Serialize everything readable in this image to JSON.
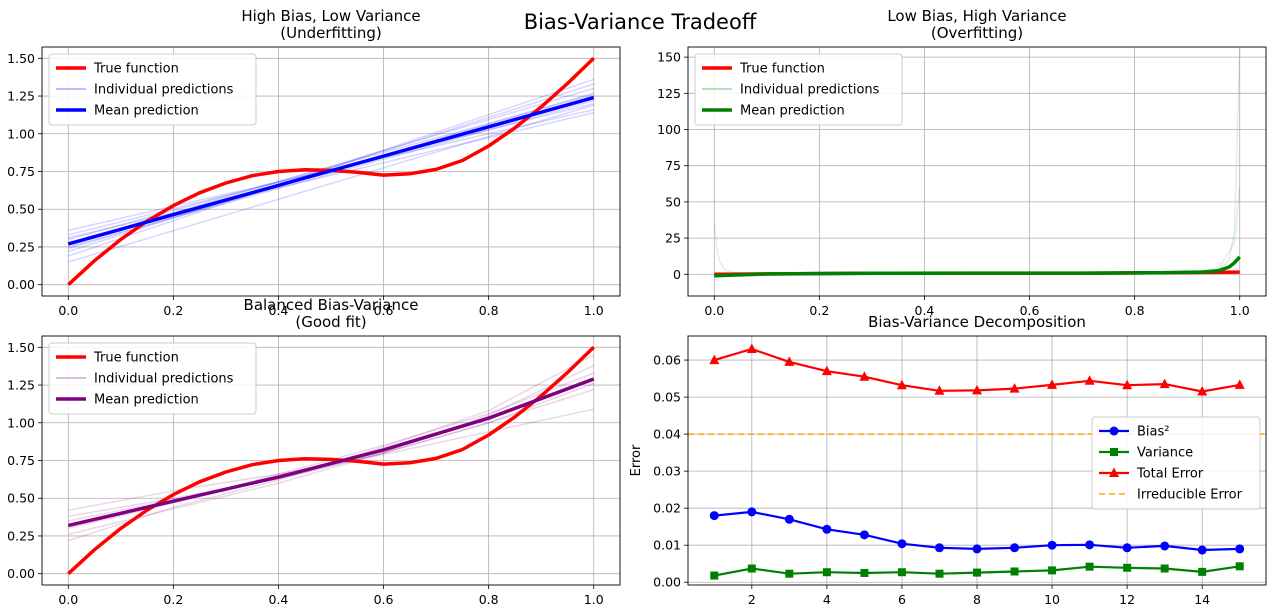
{
  "figure": {
    "suptitle": "Bias-Variance Tradeoff"
  },
  "chart_data": [
    {
      "type": "line",
      "title_line1": "High Bias, Low Variance",
      "title_line2": "(Underfitting)",
      "xlim": [
        -0.05,
        1.05
      ],
      "ylim": [
        -0.075,
        1.575
      ],
      "xticks": [
        "0.0",
        "0.2",
        "0.4",
        "0.6",
        "0.8",
        "1.0"
      ],
      "yticks": [
        "0.00",
        "0.25",
        "0.50",
        "0.75",
        "1.00",
        "1.25",
        "1.50"
      ],
      "grid": true,
      "legend_position": "upper-left",
      "legend": [
        "True function",
        "Individual predictions",
        "Mean prediction"
      ],
      "true_function": {
        "x": [
          0.0,
          0.05,
          0.1,
          0.15,
          0.2,
          0.25,
          0.3,
          0.35,
          0.4,
          0.45,
          0.5,
          0.55,
          0.6,
          0.65,
          0.7,
          0.75,
          0.8,
          0.85,
          0.9,
          0.95,
          1.0
        ],
        "y": [
          0.0,
          0.159,
          0.3,
          0.421,
          0.524,
          0.609,
          0.674,
          0.722,
          0.75,
          0.762,
          0.757,
          0.745,
          0.726,
          0.735,
          0.764,
          0.823,
          0.919,
          1.039,
          1.178,
          1.333,
          1.5
        ]
      },
      "mean_prediction": {
        "x": [
          0.0,
          1.0
        ],
        "y": [
          0.27,
          1.24
        ]
      },
      "individual_predictions": [
        {
          "x": [
            0.0,
            1.0
          ],
          "y": [
            0.36,
            1.16
          ]
        },
        {
          "x": [
            0.0,
            1.0
          ],
          "y": [
            0.33,
            1.2
          ]
        },
        {
          "x": [
            0.0,
            1.0
          ],
          "y": [
            0.3,
            1.26
          ]
        },
        {
          "x": [
            0.0,
            1.0
          ],
          "y": [
            0.27,
            1.3
          ]
        },
        {
          "x": [
            0.0,
            1.0
          ],
          "y": [
            0.24,
            1.27
          ]
        },
        {
          "x": [
            0.0,
            1.0
          ],
          "y": [
            0.22,
            1.33
          ]
        },
        {
          "x": [
            0.0,
            1.0
          ],
          "y": [
            0.19,
            1.36
          ]
        },
        {
          "x": [
            0.0,
            1.0
          ],
          "y": [
            0.15,
            1.19
          ]
        },
        {
          "x": [
            0.0,
            1.0
          ],
          "y": [
            0.31,
            1.14
          ]
        },
        {
          "x": [
            0.0,
            1.0
          ],
          "y": [
            0.25,
            1.22
          ]
        }
      ],
      "colors": {
        "true": "#ff0000",
        "individual": "#0000ff",
        "mean": "#0000ff"
      }
    },
    {
      "type": "line",
      "title_line1": "Low Bias, High Variance",
      "title_line2": "(Overfitting)",
      "xlim": [
        -0.05,
        1.05
      ],
      "ylim": [
        -15,
        157
      ],
      "xticks": [
        "0.0",
        "0.2",
        "0.4",
        "0.6",
        "0.8",
        "1.0"
      ],
      "yticks": [
        "0",
        "25",
        "50",
        "75",
        "100",
        "125",
        "150"
      ],
      "grid": true,
      "legend_position": "upper-left",
      "legend": [
        "True function",
        "Individual predictions",
        "Mean prediction"
      ],
      "true_function": {
        "x": [
          0.0,
          0.05,
          0.1,
          0.15,
          0.2,
          0.25,
          0.3,
          0.35,
          0.4,
          0.45,
          0.5,
          0.55,
          0.6,
          0.65,
          0.7,
          0.75,
          0.8,
          0.85,
          0.9,
          0.95,
          1.0
        ],
        "y": [
          0.0,
          0.159,
          0.3,
          0.421,
          0.524,
          0.609,
          0.674,
          0.722,
          0.75,
          0.762,
          0.757,
          0.745,
          0.726,
          0.735,
          0.764,
          0.823,
          0.919,
          1.039,
          1.178,
          1.333,
          1.5
        ]
      },
      "mean_prediction": {
        "x": [
          0.0,
          0.1,
          0.3,
          0.5,
          0.7,
          0.85,
          0.93,
          0.96,
          0.98,
          0.99,
          1.0
        ],
        "y": [
          -1.0,
          0.2,
          0.7,
          0.8,
          0.8,
          1.1,
          1.6,
          2.5,
          5.0,
          8.0,
          12.0
        ]
      },
      "individual_predictions": [
        {
          "x": [
            0.0,
            0.005,
            0.01,
            0.02,
            0.04,
            0.08,
            0.2,
            0.5,
            0.8,
            0.92,
            0.96,
            0.98,
            0.99,
            1.0
          ],
          "y": [
            35,
            18,
            9,
            3,
            1,
            0.5,
            0.6,
            0.8,
            1.0,
            1.6,
            3,
            10,
            30,
            156
          ]
        },
        {
          "x": [
            0.0,
            0.02,
            0.1,
            0.5,
            0.9,
            0.96,
            0.99,
            1.0
          ],
          "y": [
            -4,
            -1,
            0.3,
            0.8,
            1.2,
            4,
            22,
            60
          ]
        }
      ],
      "colors": {
        "true": "#ff0000",
        "individual": "#008000",
        "mean": "#008000"
      }
    },
    {
      "type": "line",
      "title_line1": "Balanced Bias-Variance",
      "title_line2": "(Good fit)",
      "xlim": [
        -0.05,
        1.05
      ],
      "ylim": [
        -0.075,
        1.575
      ],
      "xticks": [
        "0.0",
        "0.2",
        "0.4",
        "0.6",
        "0.8",
        "1.0"
      ],
      "yticks": [
        "0.00",
        "0.25",
        "0.50",
        "0.75",
        "1.00",
        "1.25",
        "1.50"
      ],
      "grid": true,
      "legend_position": "upper-left",
      "legend": [
        "True function",
        "Individual predictions",
        "Mean prediction"
      ],
      "true_function": {
        "x": [
          0.0,
          0.05,
          0.1,
          0.15,
          0.2,
          0.25,
          0.3,
          0.35,
          0.4,
          0.45,
          0.5,
          0.55,
          0.6,
          0.65,
          0.7,
          0.75,
          0.8,
          0.85,
          0.9,
          0.95,
          1.0
        ],
        "y": [
          0.0,
          0.159,
          0.3,
          0.421,
          0.524,
          0.609,
          0.674,
          0.722,
          0.75,
          0.762,
          0.757,
          0.745,
          0.726,
          0.735,
          0.764,
          0.823,
          0.919,
          1.039,
          1.178,
          1.333,
          1.5
        ]
      },
      "mean_prediction": {
        "x": [
          0.0,
          0.2,
          0.4,
          0.6,
          0.8,
          1.0
        ],
        "y": [
          0.32,
          0.48,
          0.64,
          0.82,
          1.03,
          1.29
        ]
      },
      "individual_predictions": [
        {
          "x": [
            0.0,
            0.2,
            0.4,
            0.6,
            0.8,
            1.0
          ],
          "y": [
            0.42,
            0.55,
            0.66,
            0.79,
            0.94,
            1.09
          ]
        },
        {
          "x": [
            0.0,
            0.2,
            0.4,
            0.6,
            0.8,
            1.0
          ],
          "y": [
            0.26,
            0.43,
            0.6,
            0.8,
            1.05,
            1.38
          ]
        },
        {
          "x": [
            0.0,
            0.2,
            0.4,
            0.6,
            0.8,
            1.0
          ],
          "y": [
            0.22,
            0.44,
            0.62,
            0.84,
            1.08,
            1.45
          ]
        },
        {
          "x": [
            0.0,
            0.2,
            0.4,
            0.6,
            0.8,
            1.0
          ],
          "y": [
            0.38,
            0.5,
            0.63,
            0.8,
            1.0,
            1.22
          ]
        },
        {
          "x": [
            0.0,
            0.2,
            0.4,
            0.6,
            0.8,
            1.0
          ],
          "y": [
            0.3,
            0.47,
            0.66,
            0.85,
            1.06,
            1.33
          ]
        },
        {
          "x": [
            0.0,
            0.2,
            0.4,
            0.6,
            0.8,
            1.0
          ],
          "y": [
            0.35,
            0.49,
            0.63,
            0.8,
            1.0,
            1.26
          ]
        }
      ],
      "colors": {
        "true": "#ff0000",
        "individual": "#800080",
        "mean": "#800080"
      }
    },
    {
      "type": "line",
      "title": "Bias-Variance Decomposition",
      "ylabel": "Error",
      "xlim": [
        0.3,
        15.7
      ],
      "ylim": [
        -0.00075,
        0.0665
      ],
      "xticks": [
        "2",
        "4",
        "6",
        "8",
        "10",
        "12",
        "14"
      ],
      "yticks": [
        "0.00",
        "0.01",
        "0.02",
        "0.03",
        "0.04",
        "0.05",
        "0.06"
      ],
      "grid": true,
      "legend_position": "center-right",
      "x": [
        1,
        2,
        3,
        4,
        5,
        6,
        7,
        8,
        9,
        10,
        11,
        12,
        13,
        14,
        15
      ],
      "series": [
        {
          "name": "Bias²",
          "color": "#0000ff",
          "marker": "circle",
          "values": [
            0.018,
            0.019,
            0.017,
            0.0143,
            0.0128,
            0.0104,
            0.0093,
            0.009,
            0.0093,
            0.01,
            0.0101,
            0.0093,
            0.0098,
            0.0087,
            0.009
          ]
        },
        {
          "name": "Variance",
          "color": "#008000",
          "marker": "square",
          "values": [
            0.0018,
            0.0037,
            0.0023,
            0.0027,
            0.0025,
            0.0027,
            0.0023,
            0.0026,
            0.0029,
            0.0032,
            0.0042,
            0.0039,
            0.0037,
            0.0028,
            0.0043
          ]
        },
        {
          "name": "Total Error",
          "color": "#ff0000",
          "marker": "triangle",
          "values": [
            0.06,
            0.063,
            0.0595,
            0.057,
            0.0555,
            0.0532,
            0.0517,
            0.0518,
            0.0523,
            0.0533,
            0.0544,
            0.0532,
            0.0535,
            0.0515,
            0.0533
          ]
        },
        {
          "name": "Irreducible Error",
          "color": "#ffa500",
          "marker": "none",
          "dashed": true,
          "constant": 0.04
        }
      ]
    }
  ]
}
